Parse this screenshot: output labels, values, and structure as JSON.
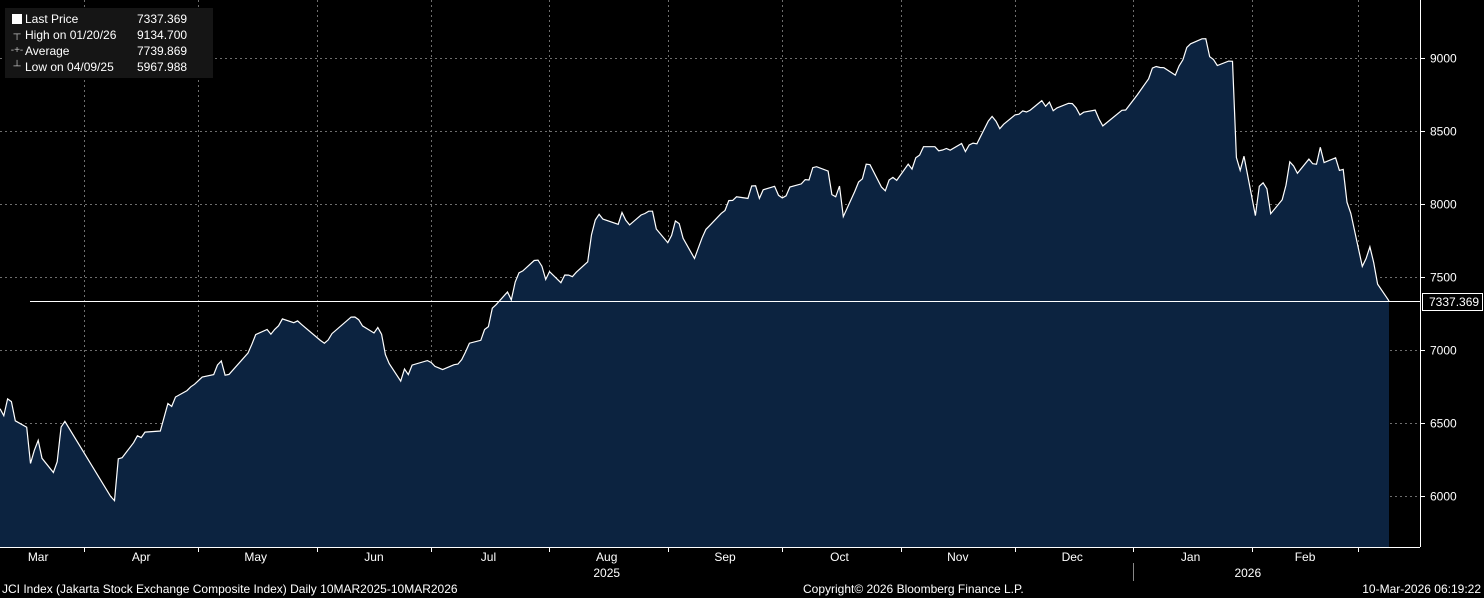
{
  "legend": {
    "rows": [
      {
        "label": "Last Price",
        "value": "7337.369",
        "icon": "square-icon"
      },
      {
        "label": "High on 01/20/26",
        "value": "9134.700",
        "icon": "high-marker-icon"
      },
      {
        "label": "Average",
        "value": "7739.869",
        "icon": "average-line-icon"
      },
      {
        "label": "Low on 04/09/25",
        "value": "5967.988",
        "icon": "low-marker-icon"
      }
    ]
  },
  "last_price_tag": "7337.369",
  "footer": {
    "left": "JCI Index (Jakarta Stock Exchange Composite Index) Daily 10MAR2025-10MAR2026",
    "center": "Copyright© 2026 Bloomberg Finance L.P.",
    "right": "10-Mar-2026 06:19:22"
  },
  "colors": {
    "background": "#000000",
    "area_fill": "#0c2340",
    "line": "#ffffff",
    "grid": "#6e6e6e"
  },
  "chart_data": {
    "type": "area",
    "title": "",
    "xlabel": "",
    "ylabel": "",
    "ylim": [
      5650,
      9400
    ],
    "y_ticks": [
      6000,
      6500,
      7000,
      7500,
      8000,
      8500,
      9000
    ],
    "x_ticks": [
      "Mar",
      "Apr",
      "May",
      "Jun",
      "Jul",
      "Aug",
      "Sep",
      "Oct",
      "Nov",
      "Dec",
      "Jan",
      "Feb"
    ],
    "x_year_labels": [
      "2025",
      "2026"
    ],
    "grid": true,
    "legend_position": "top-left",
    "last_price_line": 7337.369,
    "series": [
      {
        "name": "Last Price",
        "points": [
          [
            "2025-03-10",
            6598
          ],
          [
            "2025-03-11",
            6550
          ],
          [
            "2025-03-12",
            6665
          ],
          [
            "2025-03-13",
            6647
          ],
          [
            "2025-03-14",
            6515
          ],
          [
            "2025-03-17",
            6471
          ],
          [
            "2025-03-18",
            6223
          ],
          [
            "2025-03-19",
            6312
          ],
          [
            "2025-03-20",
            6381
          ],
          [
            "2025-03-21",
            6258
          ],
          [
            "2025-03-24",
            6161
          ],
          [
            "2025-03-25",
            6235
          ],
          [
            "2025-03-26",
            6472
          ],
          [
            "2025-03-27",
            6511
          ],
          [
            "2025-04-08",
            5996
          ],
          [
            "2025-04-09",
            5968
          ],
          [
            "2025-04-10",
            6255
          ],
          [
            "2025-04-11",
            6262
          ],
          [
            "2025-04-14",
            6365
          ],
          [
            "2025-04-15",
            6412
          ],
          [
            "2025-04-16",
            6400
          ],
          [
            "2025-04-17",
            6438
          ],
          [
            "2025-04-21",
            6445
          ],
          [
            "2025-04-22",
            6539
          ],
          [
            "2025-04-23",
            6634
          ],
          [
            "2025-04-24",
            6614
          ],
          [
            "2025-04-25",
            6678
          ],
          [
            "2025-04-28",
            6722
          ],
          [
            "2025-04-29",
            6748
          ],
          [
            "2025-04-30",
            6766
          ],
          [
            "2025-05-02",
            6815
          ],
          [
            "2025-05-05",
            6832
          ],
          [
            "2025-05-06",
            6898
          ],
          [
            "2025-05-07",
            6926
          ],
          [
            "2025-05-08",
            6828
          ],
          [
            "2025-05-09",
            6833
          ],
          [
            "2025-05-14",
            6980
          ],
          [
            "2025-05-15",
            7040
          ],
          [
            "2025-05-16",
            7106
          ],
          [
            "2025-05-19",
            7141
          ],
          [
            "2025-05-20",
            7109
          ],
          [
            "2025-05-21",
            7142
          ],
          [
            "2025-05-22",
            7167
          ],
          [
            "2025-05-23",
            7214
          ],
          [
            "2025-05-26",
            7188
          ],
          [
            "2025-05-27",
            7200
          ],
          [
            "2025-05-28",
            7176
          ],
          [
            "2025-06-02",
            7066
          ],
          [
            "2025-06-03",
            7047
          ],
          [
            "2025-06-04",
            7070
          ],
          [
            "2025-06-05",
            7113
          ],
          [
            "2025-06-10",
            7226
          ],
          [
            "2025-06-11",
            7227
          ],
          [
            "2025-06-12",
            7208
          ],
          [
            "2025-06-13",
            7166
          ],
          [
            "2025-06-16",
            7117
          ],
          [
            "2025-06-17",
            7155
          ],
          [
            "2025-06-18",
            7108
          ],
          [
            "2025-06-19",
            6969
          ],
          [
            "2025-06-20",
            6907
          ],
          [
            "2025-06-23",
            6787
          ],
          [
            "2025-06-24",
            6870
          ],
          [
            "2025-06-25",
            6832
          ],
          [
            "2025-06-26",
            6897
          ],
          [
            "2025-06-30",
            6928
          ],
          [
            "2025-07-01",
            6915
          ],
          [
            "2025-07-02",
            6888
          ],
          [
            "2025-07-03",
            6878
          ],
          [
            "2025-07-04",
            6866
          ],
          [
            "2025-07-07",
            6900
          ],
          [
            "2025-07-08",
            6904
          ],
          [
            "2025-07-09",
            6934
          ],
          [
            "2025-07-10",
            6987
          ],
          [
            "2025-07-11",
            7047
          ],
          [
            "2025-07-14",
            7067
          ],
          [
            "2025-07-15",
            7141
          ],
          [
            "2025-07-16",
            7161
          ],
          [
            "2025-07-17",
            7287
          ],
          [
            "2025-07-18",
            7311
          ],
          [
            "2025-07-21",
            7398
          ],
          [
            "2025-07-22",
            7344
          ],
          [
            "2025-07-23",
            7467
          ],
          [
            "2025-07-24",
            7530
          ],
          [
            "2025-07-25",
            7543
          ],
          [
            "2025-07-28",
            7614
          ],
          [
            "2025-07-29",
            7617
          ],
          [
            "2025-07-30",
            7575
          ],
          [
            "2025-07-31",
            7484
          ],
          [
            "2025-08-01",
            7538
          ],
          [
            "2025-08-04",
            7462
          ],
          [
            "2025-08-05",
            7515
          ],
          [
            "2025-08-06",
            7514
          ],
          [
            "2025-08-07",
            7503
          ],
          [
            "2025-08-08",
            7533
          ],
          [
            "2025-08-11",
            7605
          ],
          [
            "2025-08-12",
            7791
          ],
          [
            "2025-08-13",
            7892
          ],
          [
            "2025-08-14",
            7931
          ],
          [
            "2025-08-15",
            7898
          ],
          [
            "2025-08-19",
            7862
          ],
          [
            "2025-08-20",
            7943
          ],
          [
            "2025-08-21",
            7890
          ],
          [
            "2025-08-22",
            7858
          ],
          [
            "2025-08-25",
            7926
          ],
          [
            "2025-08-26",
            7936
          ],
          [
            "2025-08-27",
            7952
          ],
          [
            "2025-08-28",
            7952
          ],
          [
            "2025-08-29",
            7830
          ],
          [
            "2025-09-01",
            7736
          ],
          [
            "2025-09-02",
            7786
          ],
          [
            "2025-09-03",
            7885
          ],
          [
            "2025-09-04",
            7867
          ],
          [
            "2025-09-05",
            7766
          ],
          [
            "2025-09-08",
            7628
          ],
          [
            "2025-09-09",
            7699
          ],
          [
            "2025-09-10",
            7770
          ],
          [
            "2025-09-11",
            7827
          ],
          [
            "2025-09-12",
            7855
          ],
          [
            "2025-09-15",
            7937
          ],
          [
            "2025-09-16",
            7957
          ],
          [
            "2025-09-17",
            8025
          ],
          [
            "2025-09-18",
            8026
          ],
          [
            "2025-09-19",
            8051
          ],
          [
            "2025-09-22",
            8040
          ],
          [
            "2025-09-23",
            8125
          ],
          [
            "2025-09-24",
            8126
          ],
          [
            "2025-09-25",
            8040
          ],
          [
            "2025-09-26",
            8099
          ],
          [
            "2025-09-29",
            8123
          ],
          [
            "2025-09-30",
            8061
          ],
          [
            "2025-10-01",
            8043
          ],
          [
            "2025-10-02",
            8058
          ],
          [
            "2025-10-03",
            8118
          ],
          [
            "2025-10-06",
            8139
          ],
          [
            "2025-10-07",
            8169
          ],
          [
            "2025-10-08",
            8166
          ],
          [
            "2025-10-09",
            8251
          ],
          [
            "2025-10-10",
            8257
          ],
          [
            "2025-10-13",
            8227
          ],
          [
            "2025-10-14",
            8066
          ],
          [
            "2025-10-15",
            8051
          ],
          [
            "2025-10-16",
            8124
          ],
          [
            "2025-10-17",
            7915
          ],
          [
            "2025-10-20",
            8088
          ],
          [
            "2025-10-21",
            8152
          ],
          [
            "2025-10-22",
            8174
          ],
          [
            "2025-10-23",
            8274
          ],
          [
            "2025-10-24",
            8271
          ],
          [
            "2025-10-27",
            8117
          ],
          [
            "2025-10-28",
            8092
          ],
          [
            "2025-10-29",
            8166
          ],
          [
            "2025-10-30",
            8184
          ],
          [
            "2025-10-31",
            8163
          ],
          [
            "2025-11-03",
            8275
          ],
          [
            "2025-11-04",
            8241
          ],
          [
            "2025-11-05",
            8318
          ],
          [
            "2025-11-06",
            8337
          ],
          [
            "2025-11-07",
            8394
          ],
          [
            "2025-11-10",
            8394
          ],
          [
            "2025-11-11",
            8366
          ],
          [
            "2025-11-12",
            8372
          ],
          [
            "2025-11-13",
            8382
          ],
          [
            "2025-11-14",
            8370
          ],
          [
            "2025-11-17",
            8416
          ],
          [
            "2025-11-18",
            8361
          ],
          [
            "2025-11-19",
            8406
          ],
          [
            "2025-11-20",
            8419
          ],
          [
            "2025-11-21",
            8414
          ],
          [
            "2025-11-24",
            8570
          ],
          [
            "2025-11-25",
            8602
          ],
          [
            "2025-11-26",
            8569
          ],
          [
            "2025-11-27",
            8518
          ],
          [
            "2025-11-28",
            8548
          ],
          [
            "2025-12-01",
            8612
          ],
          [
            "2025-12-02",
            8617
          ],
          [
            "2025-12-03",
            8640
          ],
          [
            "2025-12-04",
            8632
          ],
          [
            "2025-12-05",
            8645
          ],
          [
            "2025-12-08",
            8710
          ],
          [
            "2025-12-09",
            8671
          ],
          [
            "2025-12-10",
            8700
          ],
          [
            "2025-12-11",
            8641
          ],
          [
            "2025-12-12",
            8660
          ],
          [
            "2025-12-15",
            8692
          ],
          [
            "2025-12-16",
            8690
          ],
          [
            "2025-12-17",
            8661
          ],
          [
            "2025-12-18",
            8612
          ],
          [
            "2025-12-19",
            8631
          ],
          [
            "2025-12-22",
            8645
          ],
          [
            "2025-12-23",
            8584
          ],
          [
            "2025-12-24",
            8537
          ],
          [
            "2025-12-29",
            8644
          ],
          [
            "2025-12-30",
            8646
          ],
          [
            "2026-01-02",
            8748
          ],
          [
            "2026-01-05",
            8860
          ],
          [
            "2026-01-06",
            8933
          ],
          [
            "2026-01-07",
            8944
          ],
          [
            "2026-01-08",
            8937
          ],
          [
            "2026-01-09",
            8936
          ],
          [
            "2026-01-12",
            8885
          ],
          [
            "2026-01-13",
            8948
          ],
          [
            "2026-01-14",
            8990
          ],
          [
            "2026-01-15",
            9075
          ],
          [
            "2026-01-16",
            9100
          ],
          [
            "2026-01-19",
            9134
          ],
          [
            "2026-01-20",
            9134.7
          ],
          [
            "2026-01-21",
            9011
          ],
          [
            "2026-01-22",
            8992
          ],
          [
            "2026-01-23",
            8951
          ],
          [
            "2026-01-26",
            8981
          ],
          [
            "2026-01-27",
            8980
          ],
          [
            "2026-01-28",
            8320
          ],
          [
            "2026-01-29",
            8232
          ],
          [
            "2026-01-30",
            8329
          ],
          [
            "2026-02-02",
            7922
          ],
          [
            "2026-02-03",
            8123
          ],
          [
            "2026-02-04",
            8147
          ],
          [
            "2026-02-05",
            8106
          ],
          [
            "2026-02-06",
            7935
          ],
          [
            "2026-02-09",
            8031
          ],
          [
            "2026-02-10",
            8131
          ],
          [
            "2026-02-11",
            8291
          ],
          [
            "2026-02-12",
            8262
          ],
          [
            "2026-02-13",
            8212
          ],
          [
            "2026-02-16",
            8309
          ],
          [
            "2026-02-17",
            8278
          ],
          [
            "2026-02-18",
            8274
          ],
          [
            "2026-02-19",
            8390
          ],
          [
            "2026-02-20",
            8285
          ],
          [
            "2026-02-23",
            8318
          ],
          [
            "2026-02-24",
            8232
          ],
          [
            "2026-02-25",
            8239
          ],
          [
            "2026-02-26",
            8014
          ],
          [
            "2026-02-27",
            7938
          ],
          [
            "2026-03-02",
            7574
          ],
          [
            "2026-03-03",
            7628
          ],
          [
            "2026-03-04",
            7708
          ],
          [
            "2026-03-05",
            7600
          ],
          [
            "2026-03-06",
            7452
          ],
          [
            "2026-03-09",
            7337.369
          ]
        ]
      }
    ]
  }
}
